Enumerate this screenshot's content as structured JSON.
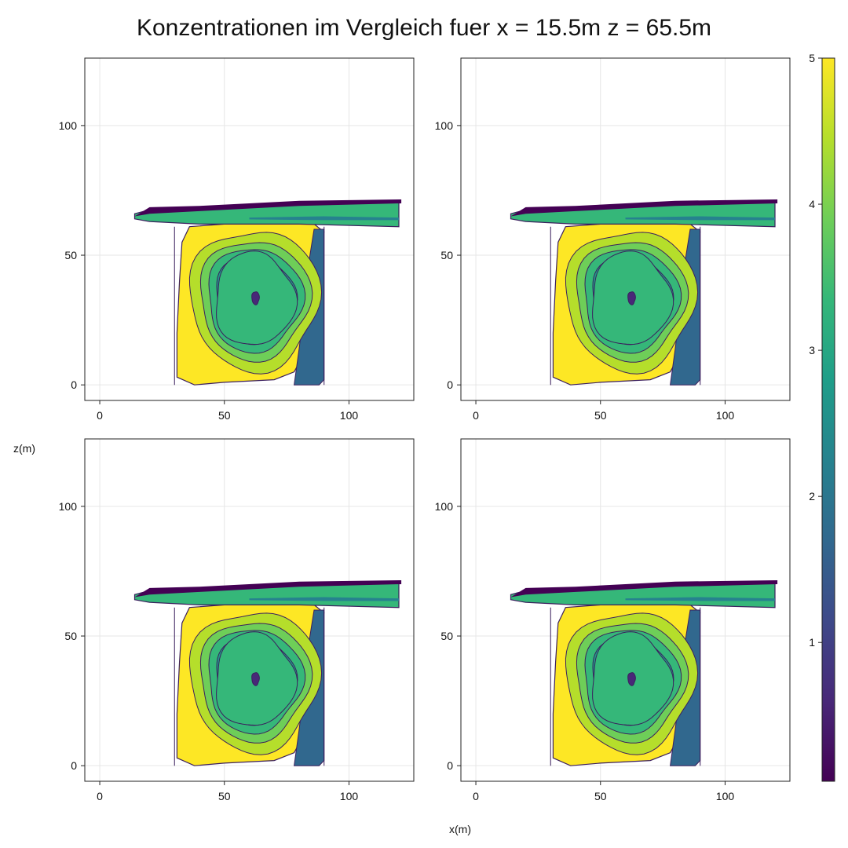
{
  "chart_data": {
    "type": "contour",
    "title": "Konzentrationen im Vergleich fuer x = 15.5m z = 65.5m",
    "xlabel": "x(m)",
    "ylabel": "z(m)",
    "grid": true,
    "panels": [
      {
        "xlim": [
          -6,
          126
        ],
        "ylim": [
          -6,
          126
        ],
        "xticks": [
          0,
          50,
          100
        ],
        "yticks": [
          0,
          50,
          100
        ],
        "tick_labels_x": [
          "0",
          "50",
          "100"
        ],
        "tick_labels_y": [
          "0",
          "50",
          "100"
        ]
      },
      {
        "xlim": [
          -6,
          126
        ],
        "ylim": [
          -6,
          126
        ],
        "xticks": [
          0,
          50,
          100
        ],
        "yticks": [
          0,
          50,
          100
        ],
        "tick_labels_x": [
          "0",
          "50",
          "100"
        ],
        "tick_labels_y": [
          "0",
          "50",
          "100"
        ]
      },
      {
        "xlim": [
          -6,
          126
        ],
        "ylim": [
          -6,
          126
        ],
        "xticks": [
          0,
          50,
          100
        ],
        "yticks": [
          0,
          50,
          100
        ],
        "tick_labels_x": [
          "0",
          "50",
          "100"
        ],
        "tick_labels_y": [
          "0",
          "50",
          "100"
        ]
      },
      {
        "xlim": [
          -6,
          126
        ],
        "ylim": [
          -6,
          126
        ],
        "xticks": [
          0,
          50,
          100
        ],
        "yticks": [
          0,
          50,
          100
        ],
        "tick_labels_x": [
          "0",
          "50",
          "100"
        ],
        "tick_labels_y": [
          "0",
          "50",
          "100"
        ]
      }
    ],
    "field": {
      "vortex_center": [
        62,
        33
      ],
      "levels": [
        0.5,
        1.0,
        1.5,
        2.0,
        2.5,
        3.0,
        3.5,
        4.0,
        4.5,
        5.0
      ],
      "bands": [
        {
          "level": 5.0,
          "color": "#fde725"
        },
        {
          "level": 4.5,
          "color": "#b5de2b"
        },
        {
          "level": 4.0,
          "color": "#6ece58"
        },
        {
          "level": 3.5,
          "color": "#35b779"
        },
        {
          "level": 3.0,
          "color": "#1f9e89"
        },
        {
          "level": 2.5,
          "color": "#26828e"
        },
        {
          "level": 2.0,
          "color": "#31688e"
        },
        {
          "level": 1.5,
          "color": "#3e4989"
        },
        {
          "level": 1.0,
          "color": "#482878"
        },
        {
          "level": 0.5,
          "color": "#440154"
        }
      ],
      "jet_band_top": [
        [
          14,
          66
        ],
        [
          20,
          67.5
        ],
        [
          40,
          68
        ],
        [
          80,
          70
        ],
        [
          120,
          71
        ]
      ],
      "jet_band_bottom": [
        [
          14,
          64
        ],
        [
          20,
          63
        ],
        [
          40,
          62
        ],
        [
          80,
          62
        ],
        [
          120,
          61
        ]
      ],
      "wall_left": [
        [
          30,
          0
        ],
        [
          30,
          61
        ]
      ],
      "wall_right": [
        [
          90,
          0
        ],
        [
          90,
          61
        ]
      ]
    },
    "colorbar": {
      "range": [
        0.05,
        5
      ],
      "ticks": [
        1,
        2,
        3,
        4,
        5
      ],
      "tick_labels": [
        "1",
        "2",
        "3",
        "4",
        "5"
      ],
      "colors": [
        "#440154",
        "#482878",
        "#3e4989",
        "#31688e",
        "#26828e",
        "#1f9e89",
        "#35b779",
        "#6ece58",
        "#b5de2b",
        "#fde725"
      ]
    }
  }
}
